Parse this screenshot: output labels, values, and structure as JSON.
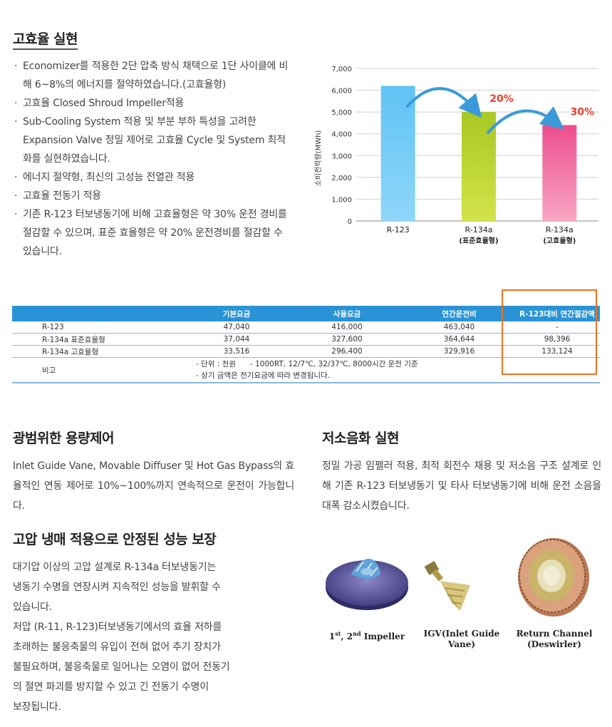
{
  "section1": {
    "title": "고효율 실현",
    "bullets": [
      "Economizer를 적용한 2단 압축 방식 채택으로 1단 사이클에 비해 6~8%의 에너지를 절약하였습니다.(고효율형)",
      "고효율 Closed Shroud Impeller적용",
      "Sub-Cooling System 적용 및 부분 부하 특성을 고려한 Expansion Valve 정밀 제어로 고효율 Cycle 및 System 최적화를 실현하였습니다.",
      "에너지 절약형, 최신의 고성능 전열관 적용",
      "고효율 전동기 적용",
      "기존 R-123 터보냉동기에 비해 고효율형은 약 30% 운전 경비를 절감할 수 있으며, 표준 효율형은 약 20% 운전경비를 절감할 수 있습니다."
    ]
  },
  "chart_data": {
    "type": "bar",
    "ylabel": "소비전력량(MWh)",
    "ylim": [
      0,
      7000
    ],
    "yticks": [
      "0",
      "1,000",
      "2,000",
      "3,000",
      "4,000",
      "5,000",
      "6,000",
      "7,000"
    ],
    "grid": true,
    "categories": [
      "R-123",
      "R-134a",
      "R-134a"
    ],
    "category_sub": [
      "",
      "(표준효율형)",
      "(고효율형)"
    ],
    "values": [
      6200,
      5000,
      4400
    ],
    "colors": [
      "#6cc6f2",
      "#b5cf2a",
      "#f06a9c"
    ],
    "annotations": [
      "20%",
      "30%"
    ],
    "annotation_color": "#e8412c",
    "arrow_color": "#3a9ad9"
  },
  "table": {
    "headers": [
      "",
      "기본요금",
      "사용요금",
      "연간운전비",
      "R-123대비 연간절감액"
    ],
    "rows": [
      [
        "R-123",
        "47,040",
        "416,000",
        "463,040",
        "-"
      ],
      [
        "R-134a 표준효율형",
        "37,044",
        "327,600",
        "364,644",
        "98,396"
      ],
      [
        "R-134a 고효율형",
        "33,516",
        "296,400",
        "329,916",
        "133,124"
      ]
    ],
    "note_label": "비고",
    "note_lines": [
      "- 단위 : 천원      - 1000RT, 12/7℃, 32/37℃, 8000시간 운전 기준",
      "- 상기 금액은 전기요금에 따라 변경됩니다."
    ]
  },
  "section2": {
    "title": "광범위한 용량제어",
    "text": "Inlet Guide Vane, Movable Diffuser 및 Hot Gas Bypass의 효율적인 연동 제어로 10%~100%까지 연속적으로 운전이 가능합니다."
  },
  "section3": {
    "title": "저소음화 실현",
    "text": "정밀 가공 임펠러 적용, 최적 회전수 채용 및 저소음 구조 설계로 인해 기존 R-123 터보냉동기 및 타사 터보냉동기에 비해 운전 소음을 대폭 감소시켰습니다."
  },
  "section4": {
    "title": "고압 냉매 적용으로 안정된 성능 보장",
    "lines": [
      "대기압 이상의 고압 설계로 R-134a 터보냉동기는",
      "냉동기 수명을 연장시켜 지속적인 성능을 발휘할 수",
      "있습니다.",
      "저압 (R-11, R-123)터보냉동기에서의 효율 저하를",
      "초래하는 불응축물의 유입이 전혀 없어 추기 장치가",
      "불필요하며, 불응축물로 일어나는 오염이 없어 전동기",
      "의 절연 파괴를 방지할 수 있고 긴 전동기 수명이",
      "보장됩니다."
    ]
  },
  "images": {
    "impeller_caption_a": "1",
    "impeller_sup_a": "st",
    "impeller_caption_b": ", 2",
    "impeller_sup_b": "nd",
    "impeller_caption_c": " Impeller",
    "igv_caption": "IGV(Inlet Guide Vane)",
    "channel_caption_1": "Return Channel",
    "channel_caption_2": "(Deswirler)"
  }
}
